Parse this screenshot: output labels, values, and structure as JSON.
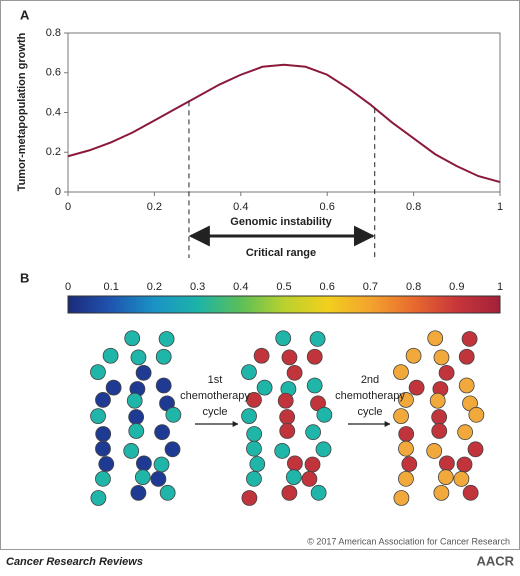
{
  "chart_data": [
    {
      "type": "line",
      "panel_label": "A",
      "ylabel": "Tumor-metapopulation growth",
      "xlabel": "Genomic instability",
      "x": [
        0,
        0.05,
        0.1,
        0.15,
        0.2,
        0.25,
        0.3,
        0.35,
        0.4,
        0.45,
        0.5,
        0.55,
        0.6,
        0.65,
        0.7,
        0.75,
        0.8,
        0.85,
        0.9,
        0.95,
        1
      ],
      "series": [
        {
          "color": "#8b1a3a",
          "values": [
            0.18,
            0.21,
            0.25,
            0.3,
            0.36,
            0.42,
            0.48,
            0.54,
            0.59,
            0.63,
            0.64,
            0.63,
            0.59,
            0.52,
            0.44,
            0.35,
            0.27,
            0.19,
            0.13,
            0.08,
            0.05
          ]
        }
      ],
      "xlim": [
        0,
        1
      ],
      "ylim": [
        0,
        0.8
      ],
      "xticks": [
        0,
        0.2,
        0.4,
        0.6,
        0.8,
        1
      ],
      "yticks": [
        0,
        0.2,
        0.4,
        0.6,
        0.8
      ],
      "critical_range": {
        "label": "Critical range",
        "x": [
          0.28,
          0.71
        ]
      }
    },
    {
      "type": "colorbar",
      "panel_label": "B",
      "xlim": [
        0,
        1
      ],
      "xticks": [
        0,
        0.1,
        0.2,
        0.3,
        0.4,
        0.5,
        0.6,
        0.7,
        0.8,
        0.9,
        1
      ],
      "colors": [
        "#1b2a7a",
        "#1f55b0",
        "#1a93c6",
        "#1db3a8",
        "#5bbf58",
        "#b9d12f",
        "#f2cf1d",
        "#f3a32f",
        "#e86a2e",
        "#c7363a",
        "#a3213a"
      ]
    }
  ],
  "populations": [
    {
      "colors": [
        "#1f3a93",
        "#1fb5a8"
      ]
    },
    {
      "colors": [
        "#c1343c",
        "#1fb5a8"
      ]
    },
    {
      "colors": [
        "#c1343c",
        "#f2a93b"
      ]
    }
  ],
  "steps": [
    [
      "1st",
      "chemotherapy",
      "cycle"
    ],
    [
      "2nd",
      "chemotherapy",
      "cycle"
    ]
  ],
  "footer": {
    "copyright": "© 2017 American Association for Cancer Research",
    "journal": "Cancer Research Reviews",
    "logo": "AACR"
  }
}
